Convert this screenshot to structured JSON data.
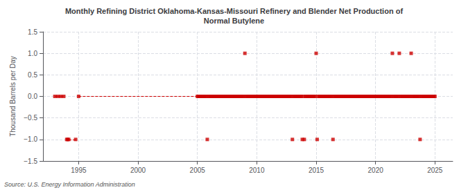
{
  "chart_data": {
    "type": "scatter",
    "title": "Monthly Refining District Oklahoma-Kansas-Missouri Refinery and Blender Net Production of\nNormal Butylene",
    "ylabel": "Thousand Barrels per Day",
    "source": "Source: U.S. Energy Information Administration",
    "color": "#cc0000",
    "marker": "square",
    "line_style": "dashed",
    "grid": true,
    "xlim": [
      1992.0,
      2026.5
    ],
    "ylim": [
      -1.5,
      1.5
    ],
    "xticks": [
      1995,
      2000,
      2005,
      2010,
      2015,
      2020,
      2025
    ],
    "yticks": [
      {
        "value": -1.5,
        "label": "−1.5"
      },
      {
        "value": -1.0,
        "label": "−1.0"
      },
      {
        "value": -0.5,
        "label": "−0.5"
      },
      {
        "value": 0.0,
        "label": "0.0"
      },
      {
        "value": 0.5,
        "label": "0.5"
      },
      {
        "value": 1.0,
        "label": "1.0"
      },
      {
        "value": 1.5,
        "label": "1.5"
      }
    ],
    "x": [
      1993.0,
      1993.25,
      1993.5,
      1993.75,
      1994.0,
      1994.083,
      1994.167,
      1994.75,
      1995.0,
      2005.0,
      2005.083,
      2005.167,
      2005.25,
      2005.333,
      2005.417,
      2005.5,
      2005.583,
      2005.667,
      2005.75,
      2005.833,
      2005.917,
      2006.0,
      2006.083,
      2006.167,
      2006.25,
      2006.333,
      2006.417,
      2006.5,
      2006.583,
      2006.667,
      2006.75,
      2006.833,
      2006.917,
      2007.0,
      2007.083,
      2007.167,
      2007.25,
      2007.333,
      2007.417,
      2007.5,
      2007.583,
      2007.667,
      2007.75,
      2007.833,
      2007.917,
      2008.0,
      2008.083,
      2008.167,
      2008.25,
      2008.333,
      2008.417,
      2008.5,
      2008.583,
      2008.667,
      2008.75,
      2008.833,
      2008.917,
      2009.0,
      2009.083,
      2009.167,
      2009.25,
      2009.333,
      2009.417,
      2009.5,
      2009.583,
      2009.667,
      2009.75,
      2009.833,
      2009.917,
      2010.0,
      2010.083,
      2010.167,
      2010.25,
      2010.333,
      2010.417,
      2010.5,
      2010.583,
      2010.667,
      2010.75,
      2010.833,
      2010.917,
      2011.0,
      2011.083,
      2011.167,
      2011.25,
      2011.333,
      2011.417,
      2011.5,
      2011.583,
      2011.667,
      2011.75,
      2011.833,
      2011.917,
      2012.0,
      2012.083,
      2012.167,
      2012.25,
      2012.333,
      2012.417,
      2012.5,
      2012.583,
      2012.667,
      2012.75,
      2012.833,
      2012.917,
      2013.0,
      2013.083,
      2013.167,
      2013.25,
      2013.333,
      2013.417,
      2013.5,
      2013.583,
      2013.667,
      2013.75,
      2013.833,
      2013.917,
      2014.0,
      2014.083,
      2014.167,
      2014.25,
      2014.333,
      2014.417,
      2014.5,
      2014.583,
      2014.667,
      2014.75,
      2014.833,
      2014.917,
      2015.0,
      2015.083,
      2015.167,
      2015.25,
      2015.333,
      2015.417,
      2015.5,
      2015.583,
      2015.667,
      2015.75,
      2015.833,
      2015.917,
      2016.0,
      2016.083,
      2016.167,
      2016.25,
      2016.333,
      2016.417,
      2016.5,
      2016.583,
      2016.667,
      2016.75,
      2016.833,
      2016.917,
      2017.0,
      2017.083,
      2017.167,
      2017.25,
      2017.333,
      2017.417,
      2017.5,
      2017.583,
      2017.667,
      2017.75,
      2017.833,
      2017.917,
      2018.0,
      2018.083,
      2018.167,
      2018.25,
      2018.333,
      2018.417,
      2018.5,
      2018.583,
      2018.667,
      2018.75,
      2018.833,
      2018.917,
      2019.0,
      2019.083,
      2019.167,
      2019.25,
      2019.333,
      2019.417,
      2019.5,
      2019.583,
      2019.667,
      2019.75,
      2019.833,
      2019.917,
      2020.0,
      2020.083,
      2020.167,
      2020.25,
      2020.333,
      2020.417,
      2020.5,
      2020.583,
      2020.667,
      2020.75,
      2020.833,
      2020.917,
      2021.0,
      2021.083,
      2021.167,
      2021.25,
      2021.333,
      2021.417,
      2021.5,
      2021.583,
      2021.667,
      2021.75,
      2021.833,
      2021.917,
      2022.0,
      2022.083,
      2022.167,
      2022.25,
      2022.333,
      2022.417,
      2022.5,
      2022.583,
      2022.667,
      2022.75,
      2022.833,
      2022.917,
      2023.0,
      2023.083,
      2023.167,
      2023.25,
      2023.333,
      2023.417,
      2023.5,
      2023.583,
      2023.667,
      2023.75,
      2023.833,
      2023.917,
      2024.0,
      2024.083,
      2024.167,
      2024.25,
      2024.333,
      2024.417,
      2024.5,
      2024.583,
      2024.667,
      2024.75,
      2024.833,
      2024.917,
      2025.0
    ],
    "values": [
      0,
      0,
      0,
      0,
      -1,
      -1,
      -1,
      -1,
      0,
      0,
      0,
      0,
      0,
      0,
      0,
      0,
      0,
      0,
      0,
      -1,
      0,
      0,
      0,
      0,
      0,
      0,
      0,
      0,
      0,
      0,
      0,
      0,
      0,
      0,
      0,
      0,
      0,
      0,
      0,
      0,
      0,
      0,
      0,
      0,
      0,
      0,
      0,
      0,
      0,
      0,
      0,
      0,
      0,
      0,
      0,
      0,
      0,
      1,
      0,
      0,
      0,
      0,
      0,
      0,
      0,
      0,
      0,
      0,
      0,
      0,
      0,
      0,
      0,
      0,
      0,
      0,
      0,
      0,
      0,
      0,
      0,
      0,
      0,
      0,
      0,
      0,
      0,
      0,
      0,
      0,
      0,
      0,
      0,
      0,
      0,
      0,
      0,
      0,
      0,
      0,
      0,
      0,
      0,
      0,
      0,
      -1,
      0,
      0,
      0,
      0,
      0,
      0,
      0,
      0,
      0,
      -1,
      0,
      -1,
      0,
      0,
      0,
      0,
      0,
      0,
      0,
      0,
      0,
      0,
      0,
      1,
      -1,
      0,
      0,
      0,
      0,
      0,
      0,
      0,
      0,
      0,
      0,
      0,
      0,
      0,
      0,
      0,
      -1,
      0,
      0,
      0,
      0,
      0,
      0,
      0,
      0,
      0,
      0,
      0,
      0,
      0,
      0,
      0,
      0,
      0,
      0,
      0,
      0,
      0,
      0,
      0,
      0,
      0,
      0,
      0,
      0,
      0,
      0,
      0,
      0,
      0,
      0,
      0,
      0,
      0,
      0,
      0,
      0,
      0,
      0,
      0,
      0,
      0,
      0,
      0,
      0,
      0,
      0,
      0,
      0,
      0,
      0,
      0,
      0,
      0,
      0,
      0,
      1,
      0,
      0,
      0,
      0,
      0,
      0,
      1,
      0,
      0,
      0,
      0,
      0,
      0,
      0,
      0,
      0,
      0,
      0,
      1,
      0,
      0,
      0,
      0,
      0,
      0,
      0,
      0,
      -1,
      0,
      0,
      0,
      0,
      0,
      0,
      0,
      0,
      0,
      0,
      0,
      0,
      0,
      0,
      0
    ]
  }
}
